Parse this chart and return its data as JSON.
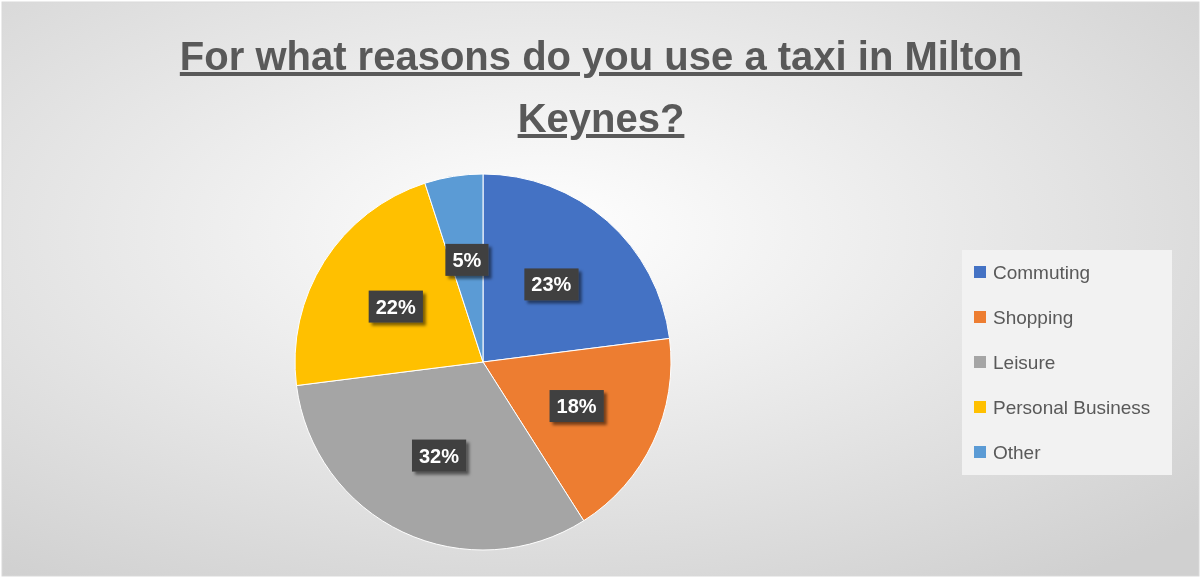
{
  "chart_data": {
    "type": "pie",
    "title": "For what reasons do you use a taxi in Milton Keynes?",
    "categories": [
      "Commuting",
      "Shopping",
      "Leisure",
      "Personal Business",
      "Other"
    ],
    "values": [
      23,
      18,
      32,
      22,
      5
    ],
    "colors": [
      "#4472c4",
      "#ed7d31",
      "#a5a5a5",
      "#ffc000",
      "#5b9bd5"
    ],
    "value_labels": [
      "23%",
      "18%",
      "32%",
      "22%",
      "5%"
    ],
    "legend": "right"
  }
}
